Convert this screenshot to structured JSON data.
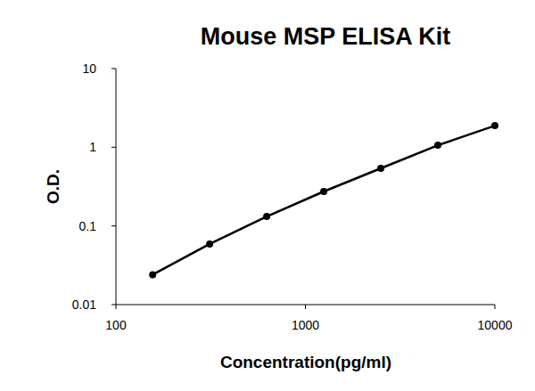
{
  "chart_data": {
    "type": "line",
    "title": "Mouse MSP ELISA Kit",
    "x_label": "Concentration(pg/ml)",
    "y_label": "O.D.",
    "x": [
      156.25,
      312.5,
      625,
      1250,
      2500,
      5000,
      10000
    ],
    "series": [
      {
        "name": "O.D.",
        "color": "#000000",
        "marker": "circle",
        "line_style": "solid",
        "values": [
          0.024,
          0.059,
          0.132,
          0.274,
          0.54,
          1.06,
          1.88
        ]
      }
    ],
    "xlim": [
      100,
      10000
    ],
    "xticks": [
      100,
      1000,
      10000
    ],
    "ylim": [
      0.01,
      10
    ],
    "yticks": [
      0.01,
      0.1,
      1,
      10
    ],
    "log": true,
    "grid": false
  }
}
